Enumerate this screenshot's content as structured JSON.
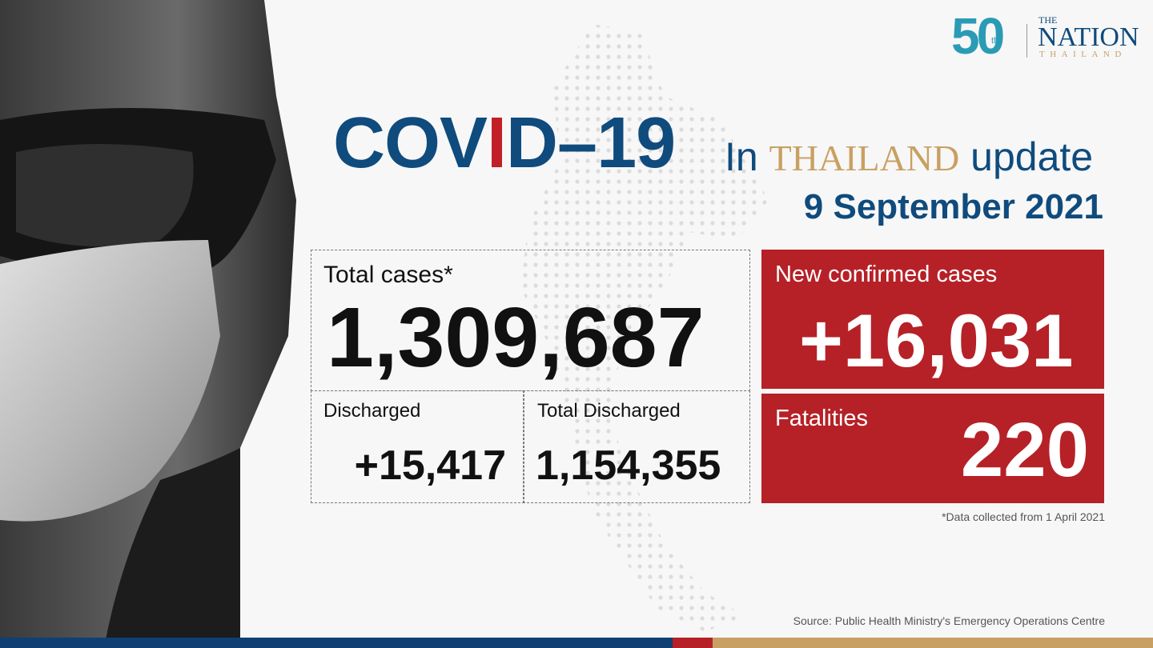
{
  "logo": {
    "anniversary": "50",
    "suffix": "th",
    "the": "THE",
    "name": "NATION",
    "country": "THAILAND"
  },
  "headline": {
    "parts": [
      "COV",
      "I",
      "D–19"
    ],
    "in": "In",
    "place": "THAILAND",
    "update": "update",
    "date": "9 September 2021"
  },
  "stats": {
    "total_cases": {
      "label": "Total cases*",
      "value": "1,309,687"
    },
    "discharged": {
      "label": "Discharged",
      "value": "+15,417"
    },
    "total_discharged": {
      "label": "Total Discharged",
      "value": "1,154,355"
    },
    "new_cases": {
      "label": "New confirmed cases",
      "value": "+16,031"
    },
    "fatalities": {
      "label": "Fatalities",
      "value": "220"
    }
  },
  "footnote": "*Data collected from 1 April 2021",
  "source": "Source: Public Health Ministry's Emergency Operations Centre"
}
